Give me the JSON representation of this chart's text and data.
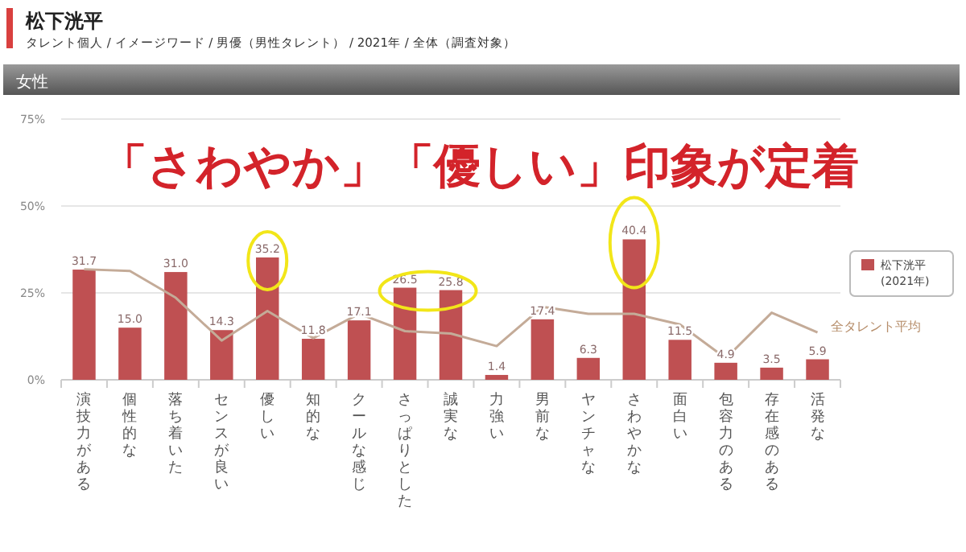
{
  "chart_data": {
    "type": "bar",
    "title": "松下洸平",
    "subtitle": "タレント個人 / イメージワード / 男優（男性タレント） / 2021年 / 全体（調査対象）",
    "annotations": [
      "女性",
      "「さわやか」「優しい」印象が定着"
    ],
    "categories": [
      "演技力がある",
      "個性的な",
      "落ち着いた",
      "センスが良い",
      "優しい",
      "知的な",
      "クールな感じ",
      "さっぱりとした",
      "誠実な",
      "力強い",
      "男前な",
      "ヤンチャな",
      "さわやかな",
      "面白い",
      "包容力のある",
      "存在感のある",
      "活発な"
    ],
    "series": [
      {
        "name": "松下洸平 (2021年)",
        "color": "#bf5052",
        "values": [
          31.7,
          15.0,
          31.0,
          14.3,
          35.2,
          11.8,
          17.1,
          26.5,
          25.8,
          1.4,
          17.4,
          6.3,
          40.4,
          11.5,
          4.9,
          3.5,
          5.9
        ],
        "value_labels": [
          "31.7",
          "15.0",
          "31.0",
          "14.3",
          "35.2",
          "11.8",
          "17.1",
          "26.5",
          "25.8",
          "1.4",
          "17.4",
          "6.3",
          "40.4",
          "11.5",
          "4.9",
          "3.5",
          "5.9"
        ]
      },
      {
        "name": "全タレント平均",
        "type": "line",
        "color": "#c4ab98",
        "values": [
          31.8,
          31.3,
          23.6,
          11.3,
          19.8,
          12.0,
          19.0,
          14.0,
          13.3,
          9.7,
          21.0,
          19.0,
          19.0,
          15.9,
          6.2,
          19.3,
          13.6
        ]
      }
    ],
    "ylim": [
      0,
      75
    ],
    "yticks": [
      {
        "value": 0,
        "label": "0%"
      },
      {
        "value": 25,
        "label": "25%"
      },
      {
        "value": 50,
        "label": "50%"
      },
      {
        "value": 75,
        "label": "75%"
      }
    ],
    "grid": "y",
    "legend": "right"
  }
}
